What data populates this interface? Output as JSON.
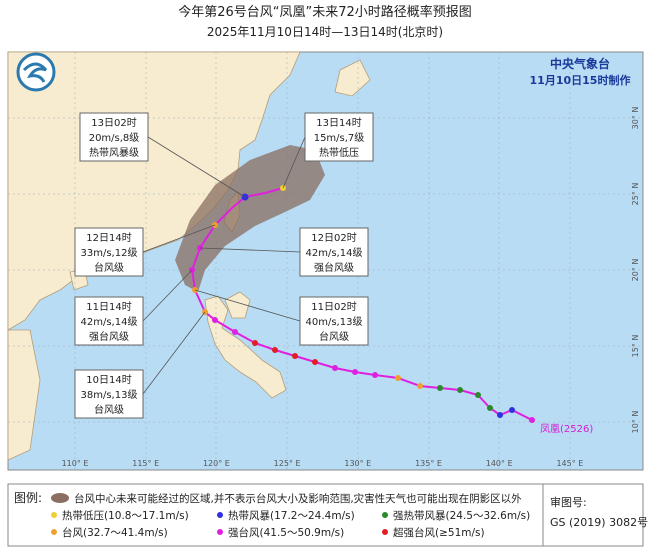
{
  "header": {
    "title": "今年第26号台风“凤凰”未来72小时路径概率预报图",
    "subtitle": "2025年11月10日14时—13日14时(北京时)"
  },
  "agency": {
    "name": "中央气象台",
    "issued": "11月10日15时制作"
  },
  "annotations": [
    {
      "lines": [
        "13日02时",
        "20m/s,8级",
        "热带风暴级"
      ]
    },
    {
      "lines": [
        "13日14时",
        "15m/s,7级",
        "热带低压"
      ]
    },
    {
      "lines": [
        "12日14时",
        "33m/s,12级",
        "台风级"
      ]
    },
    {
      "lines": [
        "12日02时",
        "42m/s,14级",
        "强台风级"
      ]
    },
    {
      "lines": [
        "11日14时",
        "42m/s,14级",
        "强台风级"
      ]
    },
    {
      "lines": [
        "11日02时",
        "40m/s,13级",
        "台风级"
      ]
    },
    {
      "lines": [
        "10日14时",
        "38m/s,13级",
        "台风级"
      ]
    }
  ],
  "typhoon_label": "凤凰(2526)",
  "axes": {
    "lon": [
      "110° E",
      "115° E",
      "120° E",
      "125° E",
      "130° E",
      "135° E",
      "140° E",
      "145° E"
    ],
    "lat": [
      "10° N",
      "15° N",
      "20° N",
      "25° N",
      "30° N"
    ]
  },
  "legend": {
    "title": "图例:",
    "items": [
      "台风中心未来可能经过的区域,并不表示台风大小及影响范围,灾害性天气也可能出现在阴影区以外",
      "热带低压(10.8～17.1m/s)",
      "热带风暴(17.2～24.4m/s)",
      "强热带风暴(24.5～32.6m/s)",
      "台风(32.7～41.4m/s)",
      "强台风(41.5～50.9m/s)",
      "超强台风(≥51m/s)"
    ]
  },
  "approval": {
    "label": "审图号:",
    "number": "GS (2019) 3082号"
  }
}
